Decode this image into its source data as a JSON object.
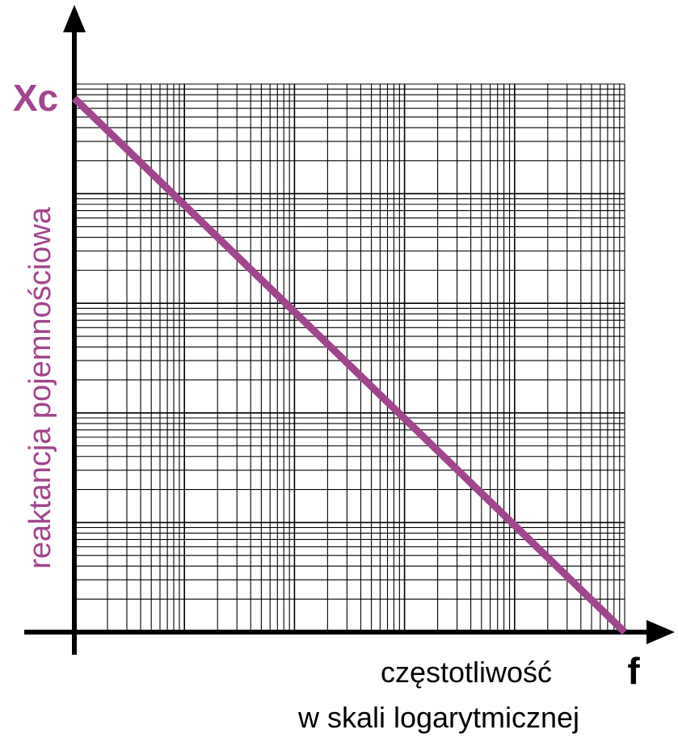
{
  "chart_data": {
    "type": "line",
    "title": "",
    "x_scale": "log",
    "y_scale": "log",
    "grid": true,
    "xlabel_line1": "częstotliwość",
    "xlabel_line2": "w skali logarytmicznej",
    "ylabel": "reaktancja pojemnościowa",
    "x_symbol": "f",
    "y_symbol": "Xc",
    "x_decades": 5,
    "y_decades": 5,
    "series": [
      {
        "color": "#a2448e",
        "x_decade": [
          0,
          5
        ],
        "y_decade": [
          4.87,
          0
        ]
      }
    ]
  },
  "colors": {
    "series": "#a2448e",
    "axis": "#000000",
    "grid": "#000000",
    "label_text": "#000000",
    "ylabel_text": "#a2448e"
  }
}
